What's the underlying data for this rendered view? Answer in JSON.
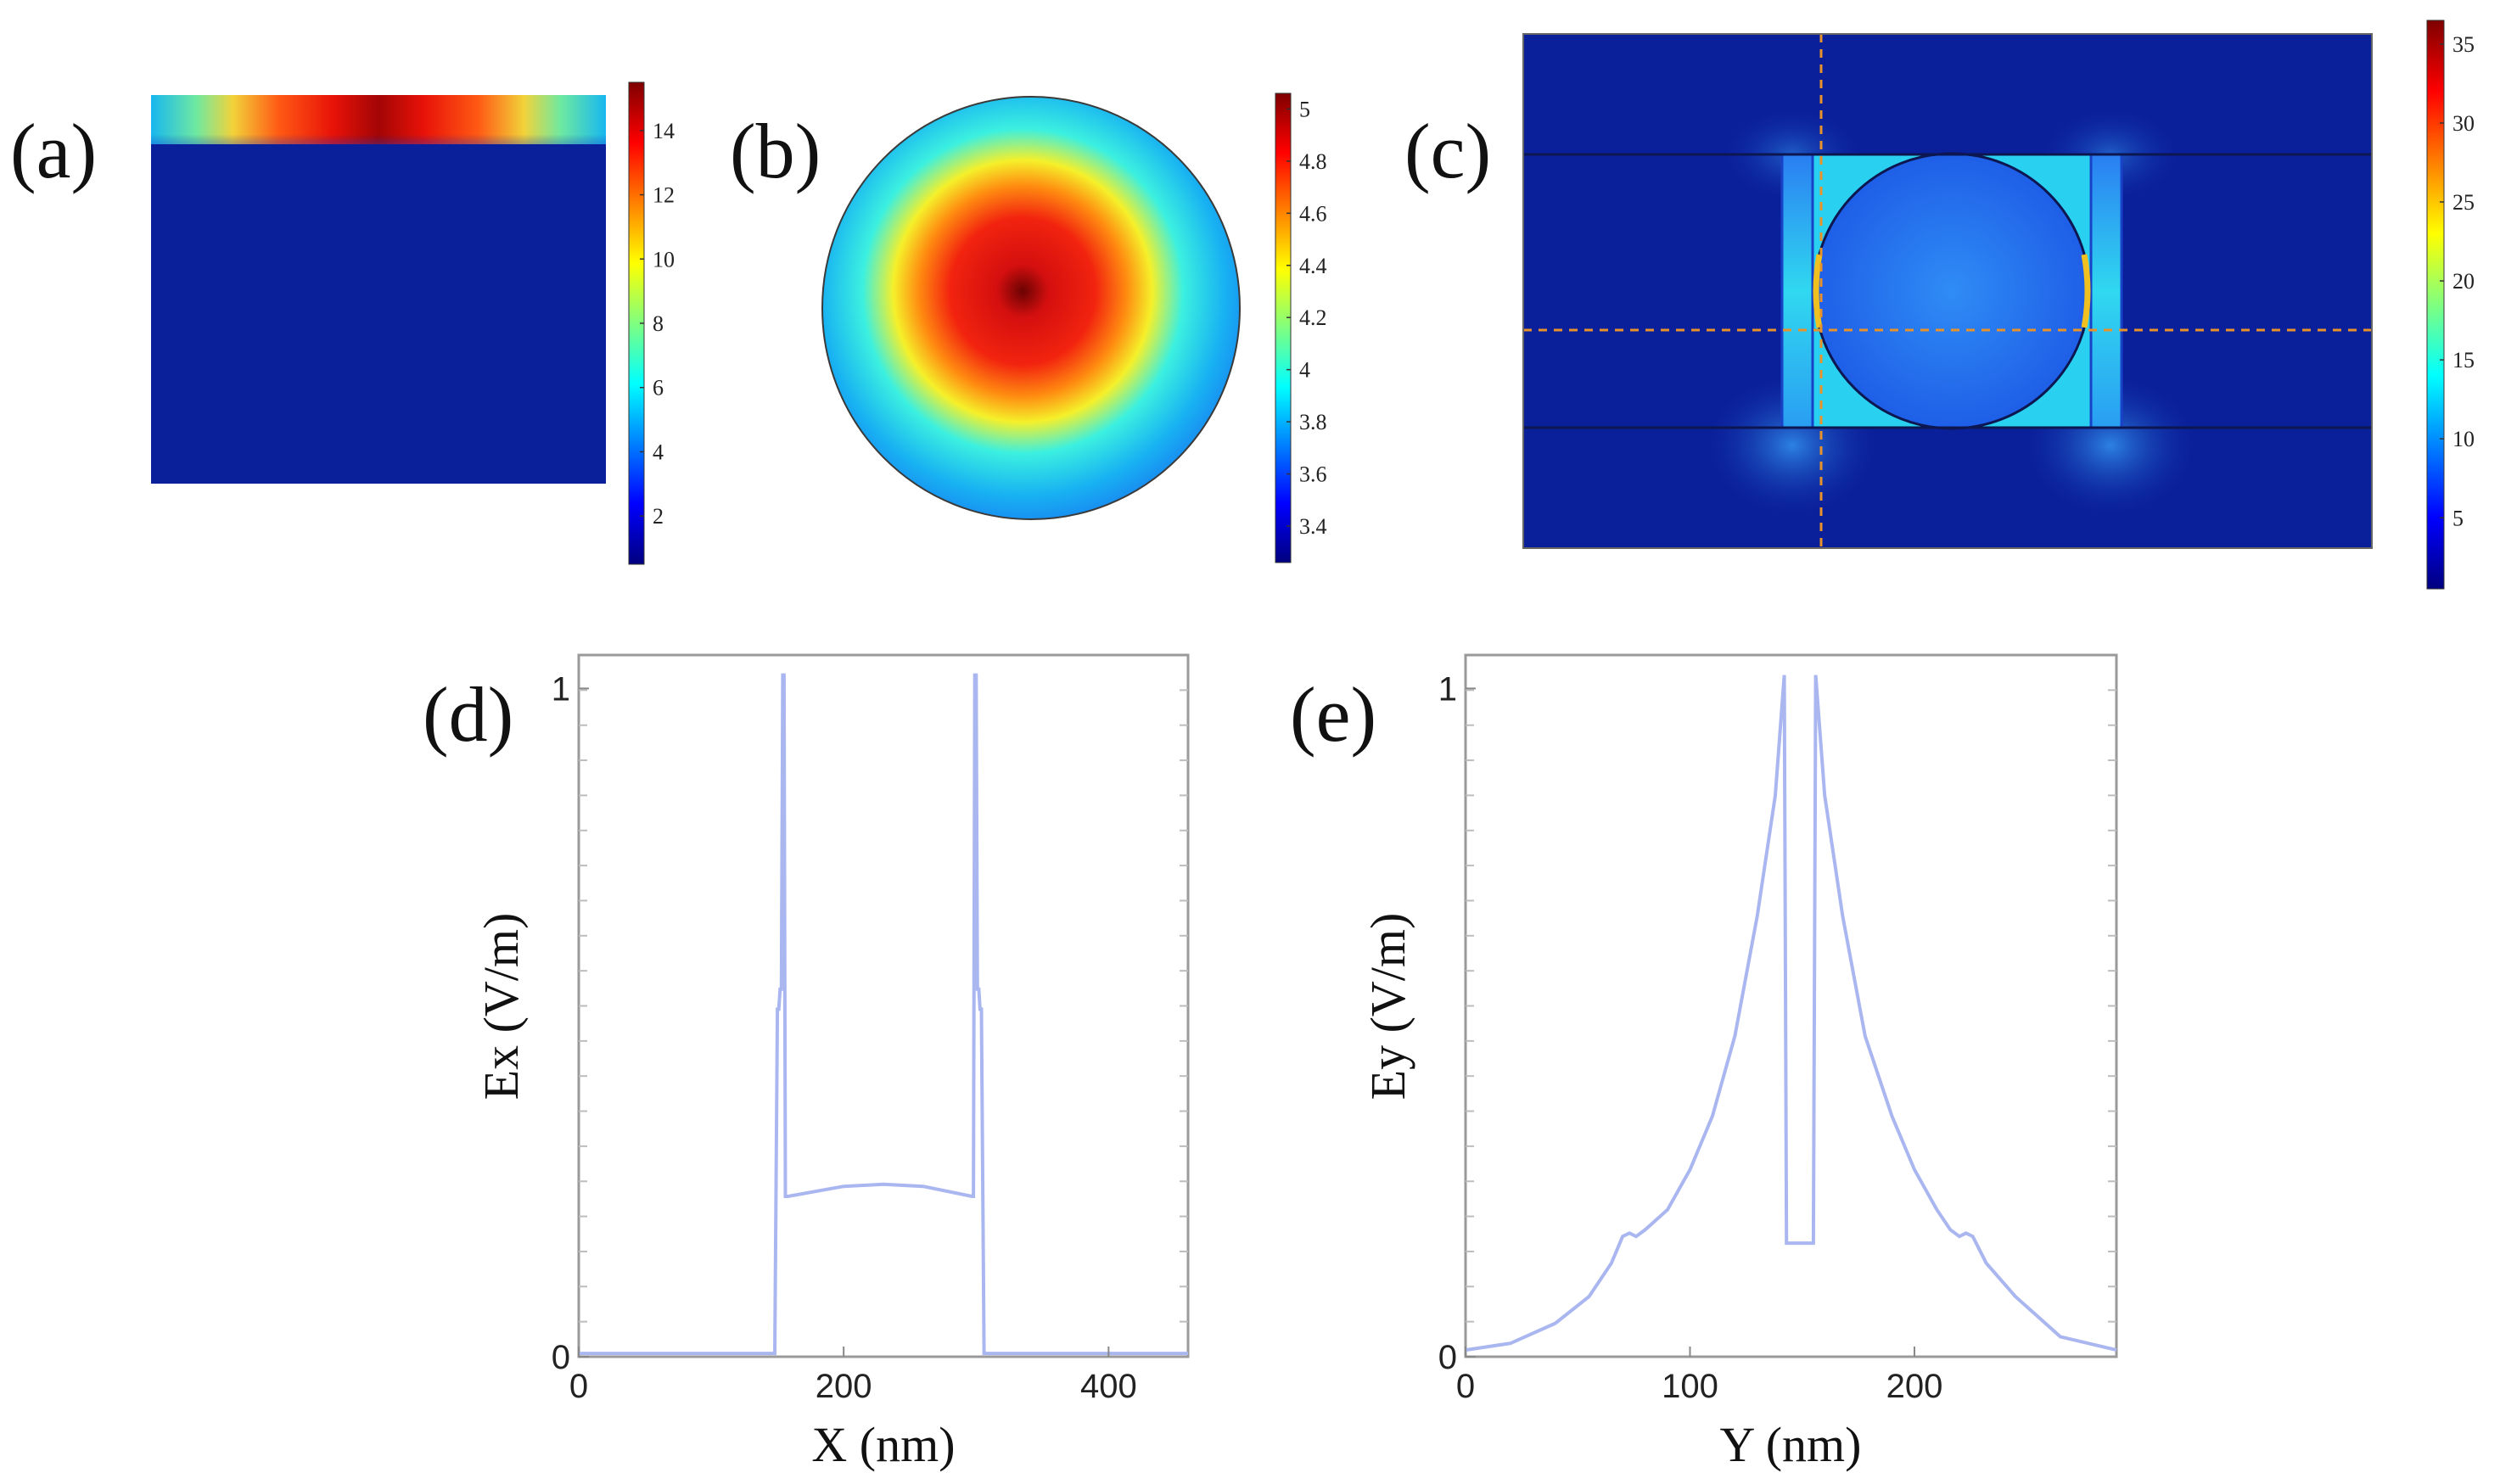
{
  "panels": {
    "a": {
      "label": "(a)"
    },
    "b": {
      "label": "(b)"
    },
    "c": {
      "label": "(c)"
    },
    "d": {
      "label": "(d)"
    },
    "e": {
      "label": "(e)"
    }
  },
  "colors": {
    "field_background": "#0a1f9a",
    "line_series": "#a9b6f0",
    "crosshair": "#e8922a",
    "axes_frame": "#9a9a9a"
  },
  "chart_data": [
    {
      "id": "a",
      "type": "heatmap",
      "colormap": "jet",
      "colorbar_ticks": [
        "2",
        "4",
        "6",
        "8",
        "10",
        "12",
        "14"
      ],
      "colorbar_range": [
        0.5,
        15.5
      ]
    },
    {
      "id": "b",
      "type": "heatmap",
      "colormap": "jet",
      "colorbar_ticks": [
        "3.4",
        "3.6",
        "3.8",
        "4",
        "4.2",
        "4.4",
        "4.6",
        "4.8",
        "5"
      ],
      "colorbar_range": [
        3.26,
        5.06
      ]
    },
    {
      "id": "c",
      "type": "heatmap",
      "colormap": "jet",
      "colorbar_ticks": [
        "5",
        "10",
        "15",
        "20",
        "25",
        "30",
        "35"
      ],
      "colorbar_range": [
        0.5,
        36.5
      ]
    },
    {
      "id": "d",
      "type": "line",
      "xlabel": "X (nm)",
      "ylabel": "Ex (V/m)",
      "xlim": [
        0,
        460
      ],
      "ylim": [
        0,
        1.05
      ],
      "xticks": [
        "0",
        "200",
        "400"
      ],
      "yticks": [
        "0",
        "1"
      ],
      "series": [
        {
          "x": [
            0,
            148,
            150,
            151,
            152,
            153,
            154,
            155,
            156,
            157,
            158,
            200,
            230,
            260,
            297,
            298,
            299,
            300,
            301,
            302,
            303,
            304,
            306,
            460
          ],
          "y": [
            0.005,
            0.005,
            0.52,
            0.52,
            0.55,
            0.55,
            1.02,
            1.02,
            0.24,
            0.24,
            0.24,
            0.255,
            0.258,
            0.255,
            0.24,
            0.24,
            1.02,
            1.02,
            0.55,
            0.55,
            0.52,
            0.52,
            0.005,
            0.005
          ]
        }
      ]
    },
    {
      "id": "e",
      "type": "line",
      "xlabel": "Y (nm)",
      "ylabel": "Ey (V/m)",
      "xlim": [
        0,
        290
      ],
      "ylim": [
        0,
        1.05
      ],
      "xticks": [
        "0",
        "100",
        "200"
      ],
      "yticks": [
        "0",
        "1"
      ],
      "series": [
        {
          "x": [
            0,
            20,
            40,
            55,
            65,
            70,
            73,
            76,
            80,
            90,
            100,
            110,
            120,
            130,
            138,
            142,
            143,
            143.5,
            154.5,
            155,
            156,
            160,
            168,
            178,
            190,
            200,
            210,
            216,
            220,
            223,
            226,
            232,
            245,
            265,
            290
          ],
          "y": [
            0.01,
            0.02,
            0.05,
            0.09,
            0.14,
            0.18,
            0.185,
            0.18,
            0.19,
            0.22,
            0.28,
            0.36,
            0.48,
            0.66,
            0.84,
            1.02,
            0.17,
            0.17,
            0.17,
            0.17,
            1.02,
            0.84,
            0.66,
            0.48,
            0.36,
            0.28,
            0.22,
            0.19,
            0.18,
            0.185,
            0.18,
            0.14,
            0.09,
            0.03,
            0.01
          ]
        }
      ]
    }
  ]
}
